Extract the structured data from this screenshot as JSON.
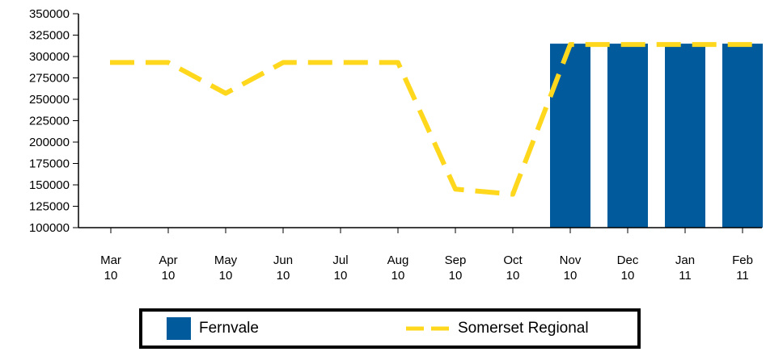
{
  "chart_data": {
    "type": "bar",
    "categories": [
      [
        "Mar",
        "10"
      ],
      [
        "Apr",
        "10"
      ],
      [
        "May",
        "10"
      ],
      [
        "Jun",
        "10"
      ],
      [
        "Jul",
        "10"
      ],
      [
        "Aug",
        "10"
      ],
      [
        "Sep",
        "10"
      ],
      [
        "Oct",
        "10"
      ],
      [
        "Nov",
        "10"
      ],
      [
        "Dec",
        "10"
      ],
      [
        "Jan",
        "11"
      ],
      [
        "Feb",
        "11"
      ]
    ],
    "series": [
      {
        "name": "Fernvale",
        "type": "bar",
        "color": "#005A9C",
        "values": [
          null,
          null,
          null,
          null,
          null,
          null,
          null,
          null,
          315000,
          315000,
          315000,
          315000
        ]
      },
      {
        "name": "Somerset Regional",
        "type": "line",
        "style": "dashed",
        "color": "#FFD81E",
        "values": [
          293000,
          293000,
          257000,
          293000,
          293000,
          293000,
          145000,
          139000,
          314000,
          314000,
          314000,
          314000
        ]
      }
    ],
    "ylim": [
      100000,
      350000
    ],
    "yticks": [
      "350000",
      "325000",
      "300000",
      "275000",
      "250000",
      "225000",
      "200000",
      "175000",
      "150000",
      "125000",
      "100000"
    ],
    "title": "",
    "xlabel": "",
    "ylabel": "",
    "grid": false,
    "legend_position": "bottom"
  },
  "legend": {
    "items": [
      {
        "label": "Fernvale",
        "color": "#005A9C",
        "kind": "bar"
      },
      {
        "label": "Somerset Regional",
        "color": "#FFD81E",
        "kind": "dashed-line"
      }
    ]
  }
}
